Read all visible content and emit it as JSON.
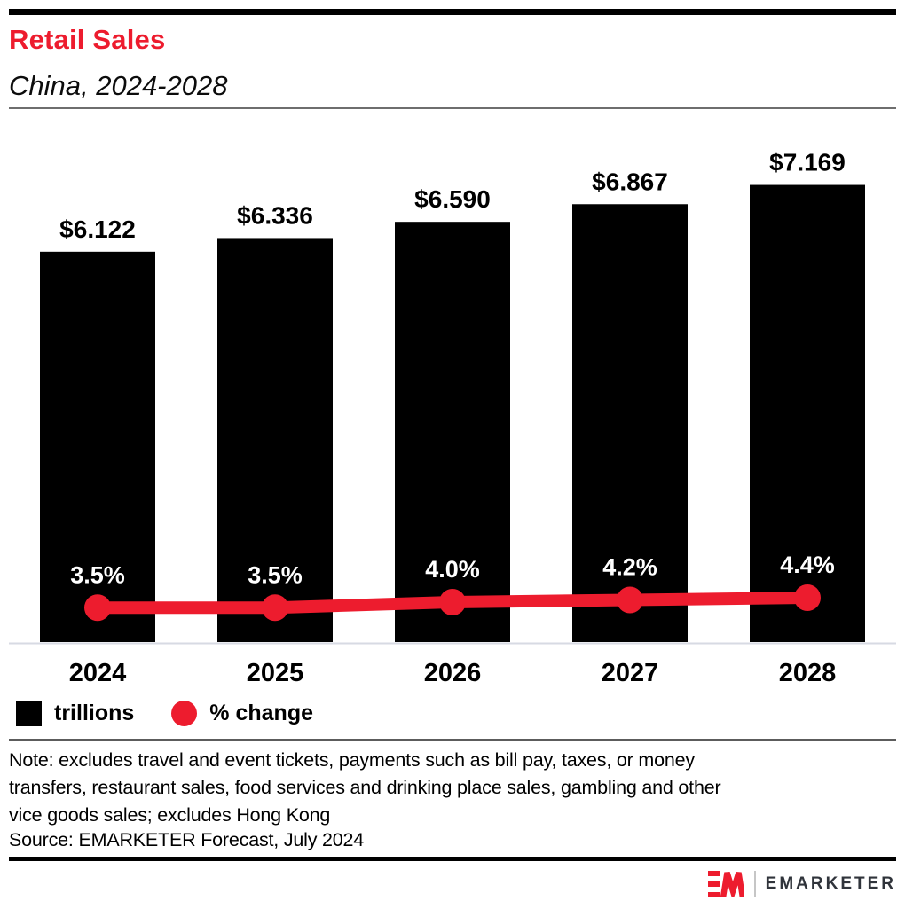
{
  "header": {
    "title": "Retail Sales",
    "subtitle": "China, 2024-2028",
    "accent_color": "#ed1c2e"
  },
  "chart_data": {
    "type": "bar",
    "subtype": "bar-line combo",
    "title": "Retail Sales",
    "subtitle": "China, 2024-2028",
    "categories": [
      "2024",
      "2025",
      "2026",
      "2027",
      "2028"
    ],
    "series": [
      {
        "name": "trillions",
        "type": "bar",
        "values": [
          6.122,
          6.336,
          6.59,
          6.867,
          7.169
        ],
        "labels": [
          "$6.122",
          "$6.336",
          "$6.590",
          "$6.867",
          "$7.169"
        ],
        "color": "#000000"
      },
      {
        "name": "% change",
        "type": "line",
        "values": [
          3.5,
          3.5,
          4.0,
          4.2,
          4.4
        ],
        "labels": [
          "3.5%",
          "3.5%",
          "4.0%",
          "4.2%",
          "4.4%"
        ],
        "color": "#ed1c2e"
      }
    ],
    "xlabel": "",
    "ylabel": "",
    "ylim": [
      0,
      7.5
    ],
    "grid": false,
    "axis_line_color": "#d7dae3",
    "legend_position": "bottom-left"
  },
  "legend": {
    "items": [
      {
        "label": "trillions",
        "swatch": "square",
        "color": "#000000"
      },
      {
        "label": "% change",
        "swatch": "circle",
        "color": "#ed1c2e"
      }
    ]
  },
  "notes": {
    "note_lines": [
      "Note: excludes travel and event tickets, payments such as bill pay, taxes, or money",
      "transfers, restaurant sales, food services and drinking place sales, gambling and other",
      "vice goods sales; excludes Hong Kong"
    ],
    "source": "Source: EMARKETER Forecast, July 2024"
  },
  "footer": {
    "brand": "EMARKETER",
    "logo_color": "#ed1c2e"
  }
}
